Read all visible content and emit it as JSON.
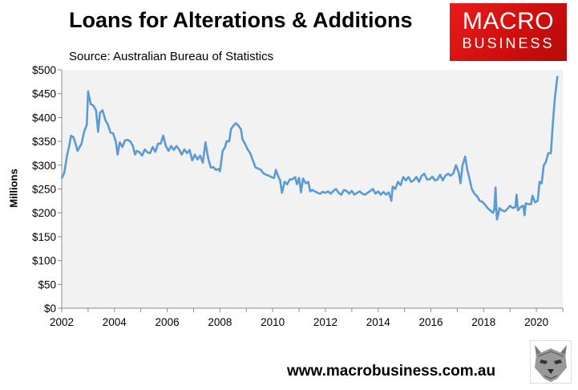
{
  "header": {
    "title": "Loans for Alterations & Additions",
    "subtitle": "Source: Australian Bureau of Statistics"
  },
  "logo": {
    "line1": "MACRO",
    "line2": "BUSINESS"
  },
  "footer": {
    "url": "www.macrobusiness.com.au"
  },
  "colors": {
    "line": "#5b9bd5",
    "plot_bg": "#f2f2f2",
    "logo_red": "#e11414"
  },
  "chart_data": {
    "type": "line",
    "ylabel": "Millions",
    "xlabel": "",
    "ylim": [
      0,
      500
    ],
    "xlim": [
      2002,
      2021
    ],
    "y_ticks": [
      0,
      50,
      100,
      150,
      200,
      250,
      300,
      350,
      400,
      450,
      500
    ],
    "y_tick_labels": [
      "$0",
      "$50",
      "$100",
      "$150",
      "$200",
      "$250",
      "$300",
      "$350",
      "$400",
      "$450",
      "$500"
    ],
    "x_ticks": [
      2002,
      2004,
      2006,
      2008,
      2010,
      2012,
      2014,
      2016,
      2018,
      2020
    ],
    "x_tick_labels": [
      "2002",
      "2004",
      "2006",
      "2008",
      "2010",
      "2012",
      "2014",
      "2016",
      "2018",
      "2020"
    ],
    "grid": false,
    "series": [
      {
        "points": [
          [
            2002.0,
            272
          ],
          [
            2002.1,
            285
          ],
          [
            2002.2,
            320
          ],
          [
            2002.3,
            345
          ],
          [
            2002.35,
            362
          ],
          [
            2002.45,
            358
          ],
          [
            2002.55,
            340
          ],
          [
            2002.6,
            330
          ],
          [
            2002.75,
            345
          ],
          [
            2002.85,
            370
          ],
          [
            2002.95,
            385
          ],
          [
            2003.0,
            455
          ],
          [
            2003.1,
            428
          ],
          [
            2003.2,
            425
          ],
          [
            2003.3,
            415
          ],
          [
            2003.38,
            370
          ],
          [
            2003.45,
            410
          ],
          [
            2003.55,
            415
          ],
          [
            2003.65,
            395
          ],
          [
            2003.75,
            385
          ],
          [
            2003.85,
            368
          ],
          [
            2003.95,
            367
          ],
          [
            2004.05,
            350
          ],
          [
            2004.12,
            322
          ],
          [
            2004.2,
            348
          ],
          [
            2004.3,
            338
          ],
          [
            2004.4,
            352
          ],
          [
            2004.5,
            353
          ],
          [
            2004.6,
            350
          ],
          [
            2004.7,
            340
          ],
          [
            2004.78,
            322
          ],
          [
            2004.85,
            330
          ],
          [
            2004.95,
            327
          ],
          [
            2005.05,
            320
          ],
          [
            2005.15,
            333
          ],
          [
            2005.25,
            327
          ],
          [
            2005.35,
            325
          ],
          [
            2005.45,
            338
          ],
          [
            2005.55,
            328
          ],
          [
            2005.65,
            345
          ],
          [
            2005.75,
            345
          ],
          [
            2005.85,
            362
          ],
          [
            2005.95,
            340
          ],
          [
            2006.05,
            330
          ],
          [
            2006.15,
            340
          ],
          [
            2006.25,
            332
          ],
          [
            2006.35,
            340
          ],
          [
            2006.45,
            333
          ],
          [
            2006.55,
            322
          ],
          [
            2006.65,
            333
          ],
          [
            2006.75,
            325
          ],
          [
            2006.85,
            332
          ],
          [
            2006.95,
            310
          ],
          [
            2007.05,
            322
          ],
          [
            2007.15,
            312
          ],
          [
            2007.25,
            320
          ],
          [
            2007.35,
            305
          ],
          [
            2007.45,
            348
          ],
          [
            2007.55,
            315
          ],
          [
            2007.65,
            295
          ],
          [
            2007.75,
            296
          ],
          [
            2007.85,
            290
          ],
          [
            2007.95,
            292
          ],
          [
            2008.0,
            287
          ],
          [
            2008.1,
            330
          ],
          [
            2008.2,
            338
          ],
          [
            2008.25,
            350
          ],
          [
            2008.35,
            350
          ],
          [
            2008.42,
            376
          ],
          [
            2008.5,
            382
          ],
          [
            2008.6,
            388
          ],
          [
            2008.7,
            383
          ],
          [
            2008.8,
            375
          ],
          [
            2008.85,
            355
          ],
          [
            2008.95,
            345
          ],
          [
            2009.05,
            333
          ],
          [
            2009.15,
            325
          ],
          [
            2009.25,
            310
          ],
          [
            2009.35,
            295
          ],
          [
            2009.45,
            293
          ],
          [
            2009.55,
            290
          ],
          [
            2009.65,
            283
          ],
          [
            2009.75,
            280
          ],
          [
            2009.85,
            278
          ],
          [
            2009.95,
            275
          ],
          [
            2010.05,
            273
          ],
          [
            2010.12,
            290
          ],
          [
            2010.2,
            278
          ],
          [
            2010.28,
            268
          ],
          [
            2010.35,
            242
          ],
          [
            2010.45,
            265
          ],
          [
            2010.55,
            260
          ],
          [
            2010.65,
            270
          ],
          [
            2010.75,
            270
          ],
          [
            2010.85,
            275
          ],
          [
            2010.92,
            260
          ],
          [
            2011.0,
            273
          ],
          [
            2011.07,
            243
          ],
          [
            2011.15,
            272
          ],
          [
            2011.25,
            262
          ],
          [
            2011.35,
            265
          ],
          [
            2011.42,
            245
          ],
          [
            2011.5,
            248
          ],
          [
            2011.6,
            245
          ],
          [
            2011.7,
            242
          ],
          [
            2011.8,
            240
          ],
          [
            2011.9,
            244
          ],
          [
            2012.0,
            242
          ],
          [
            2012.1,
            245
          ],
          [
            2012.2,
            240
          ],
          [
            2012.3,
            246
          ],
          [
            2012.4,
            250
          ],
          [
            2012.5,
            242
          ],
          [
            2012.6,
            238
          ],
          [
            2012.7,
            248
          ],
          [
            2012.8,
            246
          ],
          [
            2012.9,
            240
          ],
          [
            2013.0,
            246
          ],
          [
            2013.1,
            238
          ],
          [
            2013.2,
            242
          ],
          [
            2013.3,
            245
          ],
          [
            2013.4,
            240
          ],
          [
            2013.5,
            238
          ],
          [
            2013.6,
            242
          ],
          [
            2013.7,
            246
          ],
          [
            2013.8,
            250
          ],
          [
            2013.9,
            240
          ],
          [
            2014.0,
            245
          ],
          [
            2014.1,
            238
          ],
          [
            2014.2,
            244
          ],
          [
            2014.3,
            238
          ],
          [
            2014.4,
            243
          ],
          [
            2014.45,
            235
          ],
          [
            2014.5,
            225
          ],
          [
            2014.55,
            255
          ],
          [
            2014.65,
            250
          ],
          [
            2014.75,
            265
          ],
          [
            2014.85,
            258
          ],
          [
            2014.95,
            275
          ],
          [
            2015.05,
            268
          ],
          [
            2015.15,
            275
          ],
          [
            2015.25,
            265
          ],
          [
            2015.35,
            268
          ],
          [
            2015.45,
            275
          ],
          [
            2015.55,
            265
          ],
          [
            2015.65,
            278
          ],
          [
            2015.75,
            282
          ],
          [
            2015.85,
            270
          ],
          [
            2015.95,
            270
          ],
          [
            2016.05,
            276
          ],
          [
            2016.15,
            268
          ],
          [
            2016.25,
            270
          ],
          [
            2016.35,
            280
          ],
          [
            2016.45,
            268
          ],
          [
            2016.55,
            278
          ],
          [
            2016.65,
            282
          ],
          [
            2016.75,
            278
          ],
          [
            2016.85,
            283
          ],
          [
            2016.95,
            300
          ],
          [
            2017.05,
            285
          ],
          [
            2017.12,
            262
          ],
          [
            2017.2,
            300
          ],
          [
            2017.3,
            318
          ],
          [
            2017.38,
            290
          ],
          [
            2017.45,
            275
          ],
          [
            2017.55,
            250
          ],
          [
            2017.65,
            240
          ],
          [
            2017.75,
            235
          ],
          [
            2017.85,
            225
          ],
          [
            2017.95,
            223
          ],
          [
            2018.05,
            217
          ],
          [
            2018.15,
            210
          ],
          [
            2018.25,
            205
          ],
          [
            2018.35,
            200
          ],
          [
            2018.4,
            205
          ],
          [
            2018.45,
            253
          ],
          [
            2018.5,
            186
          ],
          [
            2018.55,
            195
          ],
          [
            2018.6,
            210
          ],
          [
            2018.7,
            205
          ],
          [
            2018.8,
            203
          ],
          [
            2018.9,
            208
          ],
          [
            2019.0,
            215
          ],
          [
            2019.1,
            210
          ],
          [
            2019.2,
            212
          ],
          [
            2019.25,
            238
          ],
          [
            2019.3,
            205
          ],
          [
            2019.4,
            212
          ],
          [
            2019.5,
            215
          ],
          [
            2019.55,
            195
          ],
          [
            2019.6,
            220
          ],
          [
            2019.7,
            218
          ],
          [
            2019.8,
            218
          ],
          [
            2019.85,
            236
          ],
          [
            2019.95,
            222
          ],
          [
            2020.05,
            225
          ],
          [
            2020.12,
            265
          ],
          [
            2020.2,
            262
          ],
          [
            2020.28,
            300
          ],
          [
            2020.35,
            305
          ],
          [
            2020.45,
            325
          ],
          [
            2020.55,
            325
          ],
          [
            2020.62,
            385
          ],
          [
            2020.7,
            440
          ],
          [
            2020.8,
            487
          ]
        ]
      }
    ]
  }
}
